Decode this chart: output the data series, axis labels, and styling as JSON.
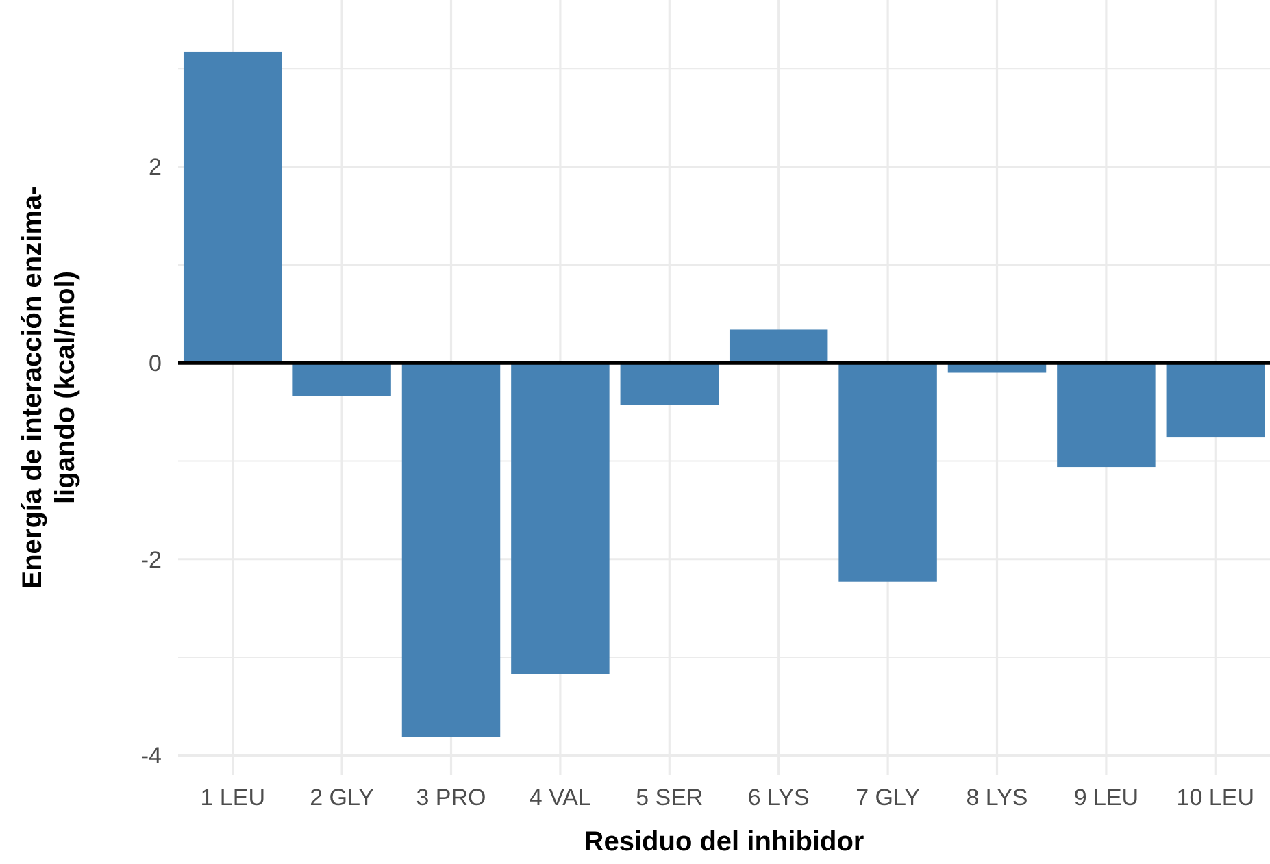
{
  "chart_data": {
    "type": "bar",
    "xlabel": "Residuo del inhibidor",
    "ylabel": "Energía de interacción enzima-\nligando (kcal/mol)",
    "categories": [
      "1 LEU",
      "2 GLY",
      "3 PRO",
      "4 VAL",
      "5 SER",
      "6 LYS",
      "7 GLY",
      "8 LYS",
      "9 LEU",
      "10 LEU"
    ],
    "values": [
      3.17,
      -0.34,
      -3.81,
      -3.17,
      -0.43,
      0.34,
      -2.23,
      -0.1,
      -1.06,
      -0.76
    ],
    "color": "#4682b4",
    "ylim": [
      -4.2,
      3.7
    ],
    "yticks": [
      {
        "value": -4,
        "label": "-4"
      },
      {
        "value": -3,
        "label": null
      },
      {
        "value": -2,
        "label": "-2"
      },
      {
        "value": -1,
        "label": null
      },
      0,
      {
        "value": 1,
        "label": null
      },
      2,
      {
        "value": 3,
        "label": null
      }
    ],
    "grid": true,
    "ref_lines": [
      {
        "axis": "y",
        "value": 0,
        "color": "#000000"
      }
    ]
  }
}
